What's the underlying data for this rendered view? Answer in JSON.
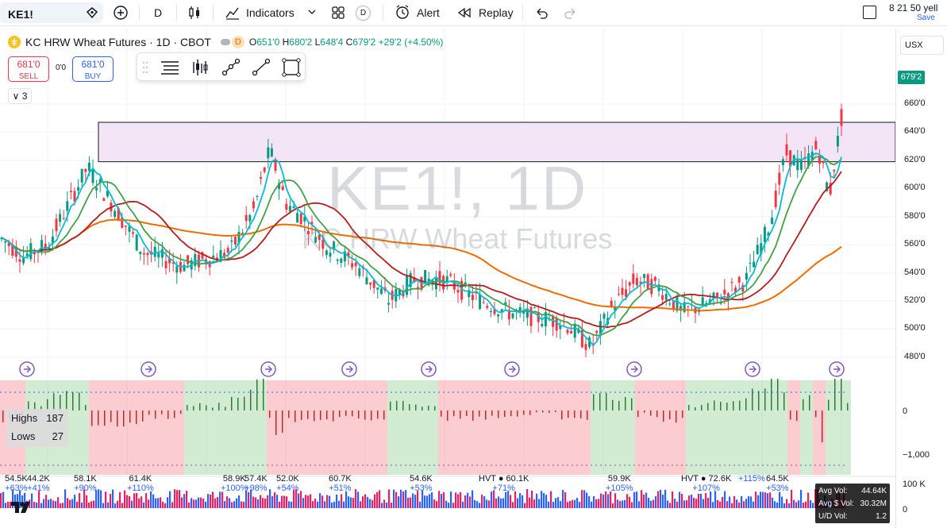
{
  "toolbar": {
    "symbol": "KE1!",
    "interval": "D",
    "indicators_label": "Indicators",
    "d_badge": "D",
    "alert_label": "Alert",
    "replay_label": "Replay",
    "top_right_text": "8 21 50 yell",
    "save_label": "Save"
  },
  "legend": {
    "title": "KC HRW Wheat Futures · 1D · CBOT",
    "d_badge": "D",
    "open_label": "O",
    "open": "651'0",
    "high_label": "H",
    "high": "680'2",
    "low_label": "L",
    "low": "648'4",
    "close_label": "C",
    "close": "679'2",
    "change": "+29'2 (+4.50%)"
  },
  "trade": {
    "sell_price": "681'0",
    "sell_label": "SELL",
    "spread": "0'0",
    "buy_price": "681'0",
    "buy_label": "BUY"
  },
  "collapse_count": "3",
  "watermark": {
    "symbol": "KE1!, 1D",
    "name": "KC HRW Wheat Futures"
  },
  "currency": "USX",
  "last_price_tag": "679'2",
  "price_axis": [
    "660'0",
    "640'0",
    "620'0",
    "600'0",
    "580'0",
    "560'0",
    "540'0",
    "520'0",
    "500'0",
    "480'0"
  ],
  "osc_axis": [
    "0",
    "−1,000"
  ],
  "vol_axis": [
    "100 K",
    "0"
  ],
  "highs_lows": {
    "highs_label": "Highs",
    "highs_value": "187",
    "lows_label": "Lows",
    "lows_value": "27"
  },
  "volume_labels": [
    {
      "vol": "54.5K",
      "pct": "+63%"
    },
    {
      "vol": "44.2K",
      "pct": "+41%"
    },
    {
      "vol": "58.1K",
      "pct": "+90%"
    },
    {
      "vol": "61.4K",
      "pct": "+110%"
    },
    {
      "vol": "58.9K",
      "pct": "+100%"
    },
    {
      "vol": "57.4K",
      "pct": "+98%"
    },
    {
      "vol": "52.0K",
      "pct": "+54%"
    },
    {
      "vol": "60.7K",
      "pct": "+51%"
    },
    {
      "vol": "54.6K",
      "pct": "+53%"
    },
    {
      "vol": "HVT ● 60.1K",
      "pct": "+71%"
    },
    {
      "vol": "59.9K",
      "pct": "+105%"
    },
    {
      "vol": "HVT ● 72.6K",
      "pct": "+107%"
    },
    {
      "vol": "",
      "pct": "+115%"
    },
    {
      "vol": "64.5K",
      "pct": "+53%"
    }
  ],
  "vol_info": {
    "avg_vol_label": "Avg Vol:",
    "avg_vol": "44.64K",
    "avg_dollar_label": "Avg $ Vol:",
    "avg_dollar": "30.32M",
    "ud_label": "U/D Vol:",
    "ud": "1.2"
  },
  "colors": {
    "up": "#089981",
    "down": "#f23645",
    "cyan": "#00bcd4",
    "green": "#43a047",
    "darkred": "#b71c1c",
    "orange": "#ef6c00",
    "zone": "#f3e5f5",
    "accent": "#2962ff"
  }
}
